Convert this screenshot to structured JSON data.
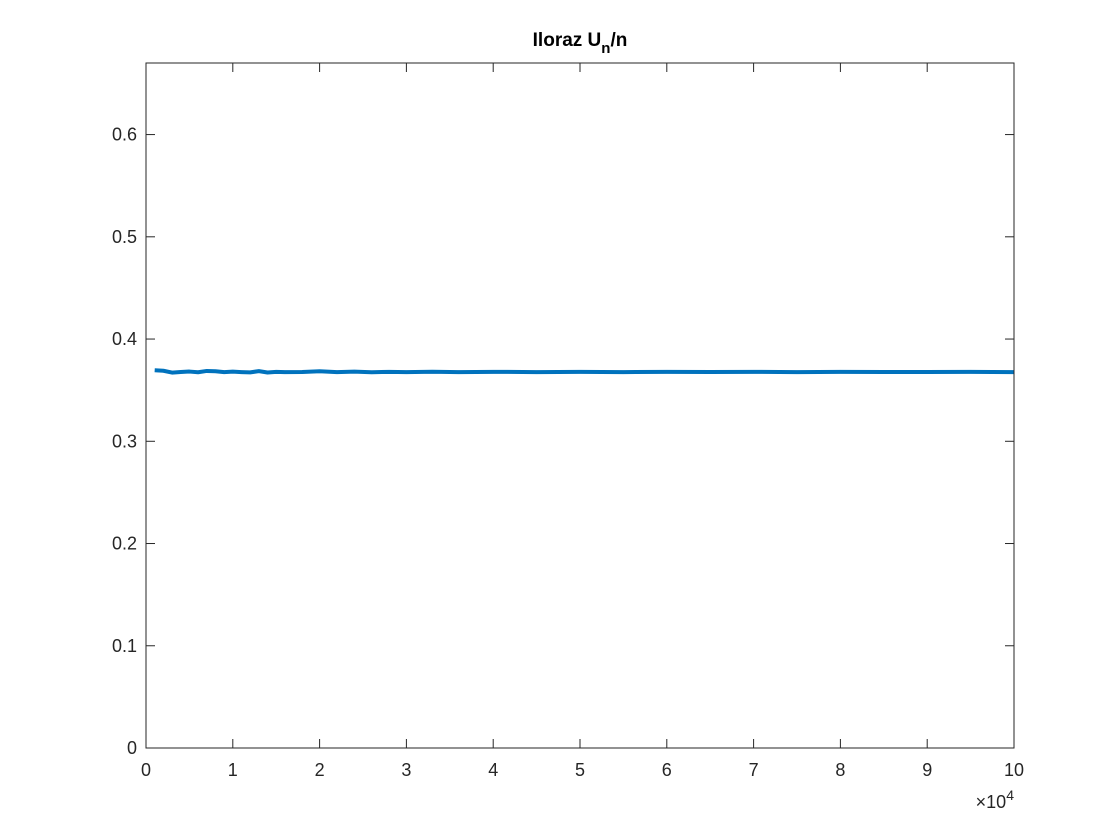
{
  "chart_data": {
    "type": "line",
    "title": {
      "main": "Iloraz U",
      "subscript": "n",
      "suffix": "/n"
    },
    "xlabel": "",
    "ylabel": "",
    "xlim": [
      0,
      100000
    ],
    "ylim": [
      0,
      0.67
    ],
    "x_ticks": [
      0,
      10000,
      20000,
      30000,
      40000,
      50000,
      60000,
      70000,
      80000,
      90000,
      100000
    ],
    "x_tick_labels": [
      "0",
      "1",
      "2",
      "3",
      "4",
      "5",
      "6",
      "7",
      "8",
      "9",
      "10"
    ],
    "x_exponent_label": {
      "times": "×10",
      "power": "4"
    },
    "y_ticks": [
      0,
      0.1,
      0.2,
      0.3,
      0.4,
      0.5,
      0.6
    ],
    "y_tick_labels": [
      "0",
      "0.1",
      "0.2",
      "0.3",
      "0.4",
      "0.5",
      "0.6"
    ],
    "grid": false,
    "series": [
      {
        "color": "#0072BD",
        "x": [
          1000,
          2000,
          3000,
          4000,
          5000,
          6000,
          7000,
          8000,
          9000,
          10000,
          11000,
          12000,
          13000,
          14000,
          15000,
          16000,
          18000,
          20000,
          22000,
          24000,
          26000,
          28000,
          30000,
          33000,
          36000,
          40000,
          45000,
          50000,
          55000,
          60000,
          65000,
          70000,
          75000,
          80000,
          85000,
          90000,
          95000,
          100000
        ],
        "y": [
          0.3695,
          0.369,
          0.3672,
          0.3678,
          0.3682,
          0.3675,
          0.3688,
          0.3685,
          0.3676,
          0.3681,
          0.3677,
          0.3674,
          0.3686,
          0.3673,
          0.3679,
          0.3676,
          0.3678,
          0.3685,
          0.3677,
          0.3681,
          0.3675,
          0.3679,
          0.3677,
          0.368,
          0.3676,
          0.3679,
          0.3677,
          0.3679,
          0.3677,
          0.3679,
          0.3678,
          0.3679,
          0.3677,
          0.3679,
          0.3678,
          0.3678,
          0.3679,
          0.3677
        ]
      }
    ]
  }
}
